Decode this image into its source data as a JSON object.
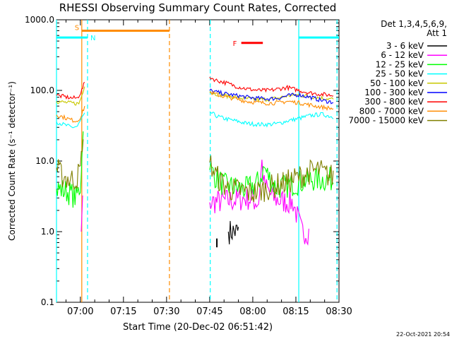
{
  "chart_data": {
    "type": "line",
    "title": "RHESSI Observing Summary Count Rates, Corrected",
    "xlabel": "Start Time (20-Dec-02 06:51:42)",
    "ylabel": "Corrected Count Rate (s⁻¹ detector⁻¹)",
    "yscale": "log",
    "ylim": [
      0.1,
      1000
    ],
    "xlim_min": [
      411.7,
      510
    ],
    "y_ticks": [
      {
        "value": 1000,
        "label": "1000.0"
      },
      {
        "value": 100,
        "label": "100.0"
      },
      {
        "value": 10,
        "label": "10.0"
      },
      {
        "value": 1,
        "label": "1.0"
      },
      {
        "value": 0.1,
        "label": "0.1"
      }
    ],
    "x_ticks": [
      {
        "min": 420,
        "label": "07:00"
      },
      {
        "min": 435,
        "label": "07:15"
      },
      {
        "min": 450,
        "label": "07:30"
      },
      {
        "min": 465,
        "label": "07:45"
      },
      {
        "min": 480,
        "label": "08:00"
      },
      {
        "min": 495,
        "label": "08:15"
      },
      {
        "min": 510,
        "label": "08:30"
      }
    ],
    "legend": {
      "title": "Det 1,3,4,5,6,9,",
      "subtitle": "Att 1",
      "position": "top-right"
    },
    "series": [
      {
        "name": "3 - 6 keV",
        "color": "#000000",
        "points": [
          [
            471.5,
            1.0
          ],
          [
            472.5,
            1.0
          ],
          [
            473.5,
            1.0
          ],
          [
            474.5,
            1.0
          ],
          [
            475,
            1.0
          ]
        ]
      },
      {
        "name": "6 - 12 keV",
        "color": "#ff00ff",
        "points": [
          [
            420.3,
            1.0
          ],
          [
            420.8,
            2.5
          ],
          [
            465,
            2.6
          ],
          [
            470,
            2.7
          ],
          [
            474,
            2.8
          ],
          [
            478,
            3.0
          ],
          [
            482,
            2.6
          ],
          [
            483.2,
            9.5
          ],
          [
            484,
            4.5
          ],
          [
            487,
            3.0
          ],
          [
            490,
            2.7
          ],
          [
            494,
            2.6
          ],
          [
            497,
            1.0
          ],
          [
            499.5,
            1.0
          ]
        ]
      },
      {
        "name": "12 - 25 keV",
        "color": "#00ff00",
        "points": [
          [
            411.7,
            4.0
          ],
          [
            413,
            4.0
          ],
          [
            416,
            3.6
          ],
          [
            418.5,
            3.0
          ],
          [
            420.0,
            4.5
          ],
          [
            421,
            28
          ],
          [
            465,
            7.5
          ],
          [
            468,
            5.5
          ],
          [
            470,
            4.5
          ],
          [
            474,
            4.2
          ],
          [
            478,
            4.0
          ],
          [
            482,
            5.0
          ],
          [
            484,
            8.0
          ],
          [
            485.5,
            6.0
          ],
          [
            488,
            4.2
          ],
          [
            492,
            4.5
          ],
          [
            496,
            5.0
          ],
          [
            500,
            5.5
          ],
          [
            505,
            5.5
          ],
          [
            508,
            5.5
          ]
        ]
      },
      {
        "name": "25 - 50 keV",
        "color": "#00ffff",
        "points": [
          [
            411.7,
            36
          ],
          [
            414,
            33
          ],
          [
            417,
            30
          ],
          [
            419,
            31
          ],
          [
            420.5,
            40
          ],
          [
            421.5,
            45
          ],
          [
            465,
            50
          ],
          [
            467,
            44
          ],
          [
            470,
            40
          ],
          [
            474,
            37
          ],
          [
            478,
            34
          ],
          [
            482,
            33
          ],
          [
            486,
            33
          ],
          [
            489,
            34
          ],
          [
            492,
            37
          ],
          [
            496,
            40
          ],
          [
            500,
            44
          ],
          [
            504,
            46
          ],
          [
            508,
            42
          ]
        ]
      },
      {
        "name": "50 - 100 keV",
        "color": "#c8c800",
        "points": [
          [
            411.7,
            70
          ],
          [
            414,
            68
          ],
          [
            417,
            66
          ],
          [
            419.5,
            65
          ],
          [
            420.5,
            85
          ],
          [
            421.5,
            120
          ],
          [
            465,
            95
          ],
          [
            467,
            90
          ],
          [
            470,
            85
          ],
          [
            474,
            80
          ],
          [
            478,
            76
          ],
          [
            482,
            74
          ],
          [
            486,
            75
          ],
          [
            489,
            78
          ],
          [
            492,
            84
          ],
          [
            496,
            86
          ],
          [
            500,
            82
          ],
          [
            504,
            78
          ],
          [
            508,
            75
          ]
        ]
      },
      {
        "name": "100 - 300 keV",
        "color": "#0000ff",
        "points": [
          [
            465,
            100
          ],
          [
            467,
            95
          ],
          [
            470,
            90
          ],
          [
            474,
            85
          ],
          [
            478,
            80
          ],
          [
            482,
            77
          ],
          [
            486,
            76
          ],
          [
            489,
            78
          ],
          [
            492,
            84
          ],
          [
            496,
            87
          ],
          [
            500,
            80
          ],
          [
            504,
            72
          ],
          [
            508,
            68
          ]
        ]
      },
      {
        "name": "300 - 800 keV",
        "color": "#ff0000",
        "points": [
          [
            411.7,
            85
          ],
          [
            414,
            82
          ],
          [
            417,
            78
          ],
          [
            419,
            78
          ],
          [
            420.5,
            100
          ],
          [
            421.5,
            130
          ],
          [
            465,
            155
          ],
          [
            467,
            140
          ],
          [
            470,
            130
          ],
          [
            474,
            115
          ],
          [
            478,
            105
          ],
          [
            482,
            100
          ],
          [
            486,
            100
          ],
          [
            489,
            105
          ],
          [
            492,
            110
          ],
          [
            496,
            100
          ],
          [
            500,
            92
          ],
          [
            504,
            88
          ],
          [
            508,
            85
          ]
        ]
      },
      {
        "name": "800 - 7000 keV",
        "color": "#ff8c00",
        "points": [
          [
            411.7,
            45
          ],
          [
            414,
            42
          ],
          [
            417,
            38
          ],
          [
            419,
            37
          ],
          [
            420.5,
            45
          ],
          [
            421.5,
            60
          ],
          [
            465,
            95
          ],
          [
            467,
            88
          ],
          [
            470,
            82
          ],
          [
            474,
            76
          ],
          [
            478,
            70
          ],
          [
            482,
            67
          ],
          [
            486,
            66
          ],
          [
            489,
            67
          ],
          [
            492,
            70
          ],
          [
            496,
            67
          ],
          [
            500,
            62
          ],
          [
            504,
            58
          ],
          [
            508,
            55
          ]
        ]
      },
      {
        "name": "7000 - 15000 keV",
        "color": "#808000",
        "points": [
          [
            411.7,
            8
          ],
          [
            413,
            6.5
          ],
          [
            416,
            5.5
          ],
          [
            418.5,
            5.5
          ],
          [
            420.0,
            7.5
          ],
          [
            421,
            20
          ],
          [
            465,
            9.5
          ],
          [
            467,
            6.5
          ],
          [
            469,
            5.0
          ],
          [
            472,
            4.0
          ],
          [
            476,
            3.8
          ],
          [
            480,
            3.5
          ],
          [
            484,
            4.0
          ],
          [
            488,
            4.5
          ],
          [
            492,
            5.0
          ],
          [
            496,
            6.0
          ],
          [
            500,
            7.0
          ],
          [
            503,
            7.5
          ],
          [
            505,
            6.5
          ],
          [
            508,
            6.0
          ]
        ]
      }
    ],
    "annotations": [
      {
        "label": "S",
        "color": "#ff8c00",
        "x_range": [
          420.5,
          451
        ],
        "y": 700
      },
      {
        "label": "N",
        "color": "#00ffff",
        "x_range": [
          411.7,
          422.5
        ],
        "y": 560
      },
      {
        "label": "N",
        "color": "#00ffff",
        "x_range": [
          496,
          510
        ],
        "y": 560
      },
      {
        "label": "F",
        "color": "#ff0000",
        "x_range": [
          476,
          483.5
        ],
        "y": 470
      }
    ],
    "vertical_lines": [
      {
        "x": 411.7,
        "color": "#00ffff",
        "style": "solid"
      },
      {
        "x": 420.5,
        "color": "#ff8c00",
        "style": "solid"
      },
      {
        "x": 422.5,
        "color": "#00ffff",
        "style": "dashed"
      },
      {
        "x": 451,
        "color": "#ff8c00",
        "style": "dashed"
      },
      {
        "x": 465.2,
        "color": "#00ffff",
        "style": "dashed"
      },
      {
        "x": 496,
        "color": "#00ffff",
        "style": "solid"
      },
      {
        "x": 509.3,
        "color": "#00ffff",
        "style": "dashed"
      }
    ],
    "marker": {
      "x": 467.5,
      "y_range": [
        0.6,
        0.8
      ]
    },
    "footer": "22-Oct-2021 20:54"
  }
}
